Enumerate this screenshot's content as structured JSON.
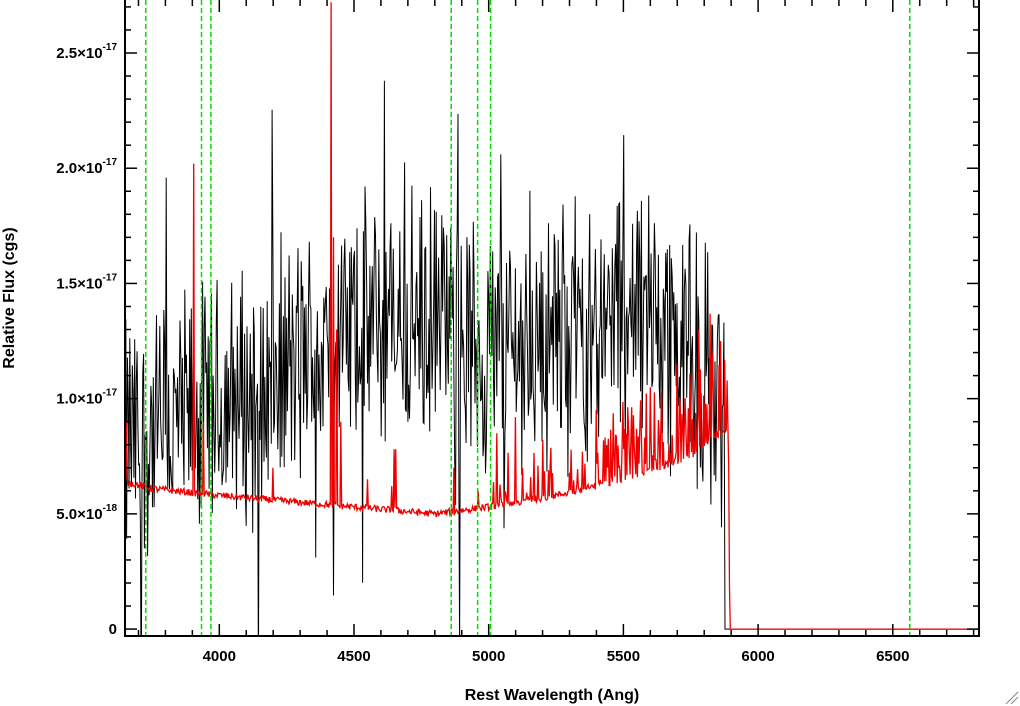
{
  "chart_data": {
    "type": "line",
    "xlabel": "Rest Wavelength (Ang)",
    "ylabel": "Relative Flux (cgs)",
    "xlim": [
      3650,
      6820
    ],
    "ylim": [
      -3e-19,
      2.73e-17
    ],
    "x_ticks": [
      {
        "value": 4000,
        "label": "4000"
      },
      {
        "value": 4500,
        "label": "4500"
      },
      {
        "value": 5000,
        "label": "5000"
      },
      {
        "value": 5500,
        "label": "5500"
      },
      {
        "value": 6000,
        "label": "6000"
      },
      {
        "value": 6500,
        "label": "6500"
      }
    ],
    "y_ticks": [
      {
        "value": 0,
        "mantissa": "0",
        "exponent": ""
      },
      {
        "value": 5e-18,
        "mantissa": "5.0×10",
        "exponent": "-18"
      },
      {
        "value": 1e-17,
        "mantissa": "1.0×10",
        "exponent": "-17"
      },
      {
        "value": 1.5e-17,
        "mantissa": "1.5×10",
        "exponent": "-17"
      },
      {
        "value": 2e-17,
        "mantissa": "2.0×10",
        "exponent": "-17"
      },
      {
        "value": 2.5e-17,
        "mantissa": "2.5×10",
        "exponent": "-17"
      }
    ],
    "x_minor_step": 100,
    "y_minor_step": 1e-18,
    "grid": false,
    "legend": "none",
    "vlines": {
      "color": "#00dd00",
      "style": "dashed",
      "x": [
        3727,
        3934,
        3969,
        4861,
        4959,
        5007,
        6563
      ]
    },
    "series": [
      {
        "color": "#000000",
        "x_start": 3650,
        "x_end": 5875,
        "x_step": 3,
        "noise_amplitude": 4.8e-18,
        "continuum": [
          [
            3650,
            8e-18
          ],
          [
            4000,
            9.5e-18
          ],
          [
            4300,
            1.15e-17
          ],
          [
            4500,
            1.3e-17
          ],
          [
            4800,
            1.32e-17
          ],
          [
            5000,
            1.2e-17
          ],
          [
            5300,
            1.3e-17
          ],
          [
            5600,
            1.4e-17
          ],
          [
            5875,
            1e-17
          ]
        ],
        "after_end_value": 0
      },
      {
        "color": "#ee0000",
        "x_start": 3650,
        "x_end": 6820,
        "x_step": 3,
        "continuum": [
          [
            3650,
            6.4e-18
          ],
          [
            3750,
            6.1e-18
          ],
          [
            4000,
            5.8e-18
          ],
          [
            4300,
            5.5e-18
          ],
          [
            4600,
            5.2e-18
          ],
          [
            4800,
            5e-18
          ],
          [
            5000,
            5.3e-18
          ],
          [
            5250,
            5.8e-18
          ],
          [
            5500,
            6.5e-18
          ],
          [
            5750,
            7.5e-18
          ],
          [
            5890,
            8.8e-18
          ],
          [
            5895,
            0.0
          ],
          [
            6820,
            0.0
          ]
        ],
        "spikes": [
          [
            3655,
            9e-18
          ],
          [
            3905,
            2.02e-17
          ],
          [
            3940,
            9e-18
          ],
          [
            4200,
            7e-18
          ],
          [
            4415,
            2.72e-17
          ],
          [
            4425,
            1.7e-17
          ],
          [
            4435,
            1.3e-17
          ],
          [
            4450,
            9e-18
          ],
          [
            4550,
            6.5e-18
          ],
          [
            4640,
            6.2e-18
          ],
          [
            4650,
            7.8e-18
          ],
          [
            4655,
            7.8e-18
          ],
          [
            4870,
            7e-18
          ],
          [
            4960,
            6e-18
          ],
          [
            5030,
            8.5e-18
          ],
          [
            5100,
            9.2e-18
          ],
          [
            5200,
            8.2e-18
          ],
          [
            5400,
            9.5e-18
          ],
          [
            5600,
            1.05e-17
          ],
          [
            5700,
            1.15e-17
          ],
          [
            5780,
            1.3e-17
          ],
          [
            5860,
            1.25e-17
          ]
        ]
      }
    ]
  }
}
